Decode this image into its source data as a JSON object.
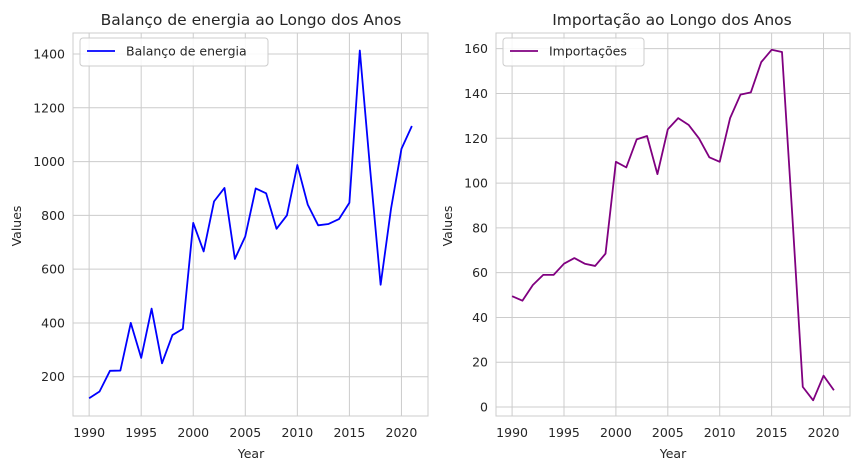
{
  "colors": {
    "energy": "#0000ff",
    "imports": "#800080",
    "grid": "#cccccc",
    "text": "#262626"
  },
  "chart_data": [
    {
      "type": "line",
      "title": "Balanço de energia ao Longo dos Anos",
      "xlabel": "Year",
      "ylabel": "Values",
      "xlim": [
        1988.45,
        1992.55
      ],
      "xlim_full": [
        1988.45,
        2022.55
      ],
      "ylim": [
        54,
        1478
      ],
      "xticks": [
        1990,
        1995,
        2000,
        2005,
        2010,
        2015,
        2020
      ],
      "yticks": [
        200,
        400,
        600,
        800,
        1000,
        1200,
        1400
      ],
      "grid": true,
      "legend": "top-left",
      "series": [
        {
          "name": "Balanço de energia",
          "color": "#0000ff",
          "x": [
            1990,
            1991,
            1992,
            1993,
            1994,
            1995,
            1996,
            1997,
            1998,
            1999,
            2000,
            2001,
            2002,
            2003,
            2004,
            2005,
            2006,
            2007,
            2008,
            2009,
            2010,
            2011,
            2012,
            2013,
            2014,
            2015,
            2016,
            2017,
            2018,
            2019,
            2020,
            2021
          ],
          "y": [
            120,
            145,
            222,
            223,
            400,
            270,
            453,
            250,
            355,
            378,
            772,
            666,
            852,
            902,
            638,
            722,
            900,
            882,
            750,
            800,
            987,
            840,
            763,
            768,
            786,
            847,
            1413,
            968,
            542,
            825,
            1047,
            1132
          ]
        }
      ]
    },
    {
      "type": "line",
      "title": "Importação ao Longo dos Anos",
      "xlabel": "Year",
      "ylabel": "Values",
      "xlim_full": [
        1988.45,
        2022.55
      ],
      "ylim": [
        -4,
        167
      ],
      "xticks": [
        1990,
        1995,
        2000,
        2005,
        2010,
        2015,
        2020
      ],
      "yticks": [
        0,
        20,
        40,
        60,
        80,
        100,
        120,
        140,
        160
      ],
      "grid": true,
      "legend": "top-left",
      "series": [
        {
          "name": "Importações",
          "color": "#800080",
          "x": [
            1990,
            1991,
            1992,
            1993,
            1994,
            1995,
            1996,
            1997,
            1998,
            1999,
            2000,
            2001,
            2002,
            2003,
            2004,
            2005,
            2006,
            2007,
            2008,
            2009,
            2010,
            2011,
            2012,
            2013,
            2014,
            2015,
            2016,
            2017,
            2018,
            2019,
            2020,
            2021
          ],
          "y": [
            49.5,
            47.5,
            54.5,
            59,
            59,
            64,
            66.5,
            64,
            63,
            68.5,
            109.5,
            107,
            119.5,
            121,
            104,
            124,
            129,
            126,
            120,
            111.5,
            109.5,
            129,
            139.5,
            140.5,
            154,
            159.5,
            158.5,
            85,
            9,
            3,
            14,
            7.5
          ]
        }
      ]
    }
  ]
}
